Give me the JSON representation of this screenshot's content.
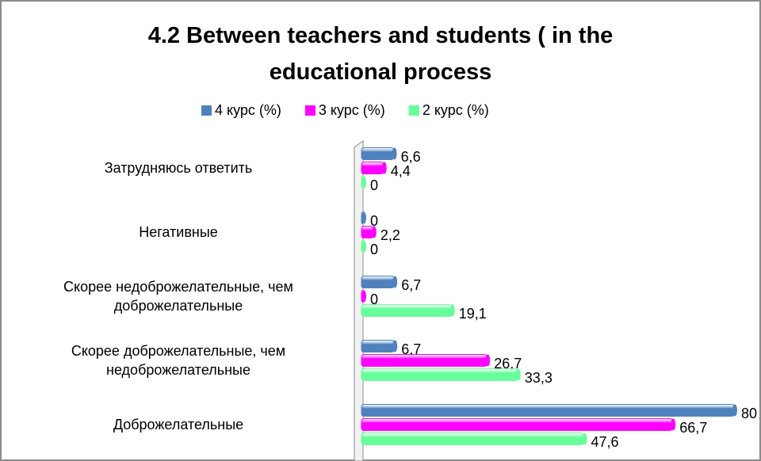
{
  "chart_data": {
    "type": "bar",
    "orientation": "horizontal",
    "title": "4.2 Between teachers and students ( in the educational process",
    "categories": [
      "Затрудняюсь ответить",
      "Негативные",
      "Скорее недоброжелательные, чем доброжелательные",
      "Скорее доброжелательные, чем недоброжелательные",
      "Доброжелательные"
    ],
    "series": [
      {
        "name": "4 курс (%)",
        "color": "#4f81bd",
        "values": [
          6.6,
          0,
          6.7,
          6.7,
          80
        ],
        "value_labels": [
          "6,6",
          "0",
          "6,7",
          "6,7",
          "80"
        ]
      },
      {
        "name": "3 курс (%)",
        "color": "#ff00ff",
        "values": [
          4.4,
          2.2,
          0,
          26.7,
          66.7
        ],
        "value_labels": [
          "4,4",
          "2,2",
          "0",
          "26,7",
          "66,7"
        ]
      },
      {
        "name": "2 курс (%)",
        "color": "#66ff99",
        "values": [
          0,
          0,
          19.1,
          33.3,
          47.6
        ],
        "value_labels": [
          "0",
          "0",
          "19,1",
          "33,3",
          "47,6"
        ]
      }
    ],
    "legend": "top"
  }
}
